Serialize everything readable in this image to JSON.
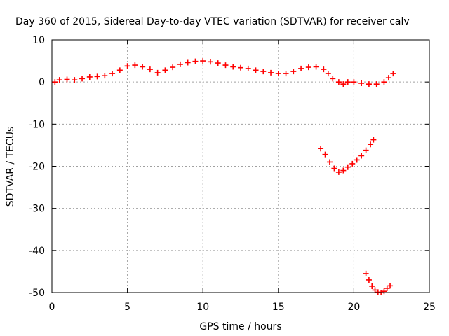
{
  "chart_data": {
    "type": "scatter",
    "title": "Day 360 of 2015, Sidereal Day-to-day VTEC variation (SDTVAR) for receiver calv",
    "xlabel": "GPS time / hours",
    "ylabel": "SDTVAR / TECUs",
    "xlim": [
      0,
      25
    ],
    "ylim": [
      -50,
      10
    ],
    "xticks": [
      0,
      5,
      10,
      15,
      20,
      25
    ],
    "yticks": [
      -50,
      -40,
      -30,
      -20,
      -10,
      0,
      10
    ],
    "grid": true,
    "marker": "plus",
    "color": "#ff0000",
    "series": [
      {
        "values": [
          [
            0.2,
            0.0
          ],
          [
            0.5,
            0.5
          ],
          [
            1.0,
            0.6
          ],
          [
            1.5,
            0.5
          ],
          [
            2.0,
            0.8
          ],
          [
            2.5,
            1.2
          ],
          [
            3.0,
            1.3
          ],
          [
            3.5,
            1.5
          ],
          [
            4.0,
            2.0
          ],
          [
            4.5,
            2.8
          ],
          [
            5.0,
            3.8
          ],
          [
            5.5,
            4.0
          ],
          [
            6.0,
            3.6
          ],
          [
            6.5,
            3.0
          ],
          [
            7.0,
            2.2
          ],
          [
            7.5,
            2.8
          ],
          [
            8.0,
            3.5
          ],
          [
            8.5,
            4.2
          ],
          [
            9.0,
            4.6
          ],
          [
            9.5,
            4.9
          ],
          [
            10.0,
            5.0
          ],
          [
            10.5,
            4.8
          ],
          [
            11.0,
            4.5
          ],
          [
            11.5,
            4.0
          ],
          [
            12.0,
            3.6
          ],
          [
            12.5,
            3.4
          ],
          [
            13.0,
            3.2
          ],
          [
            13.5,
            2.8
          ],
          [
            14.0,
            2.5
          ],
          [
            14.5,
            2.2
          ],
          [
            15.0,
            2.0
          ],
          [
            15.5,
            2.0
          ],
          [
            16.0,
            2.5
          ],
          [
            16.5,
            3.2
          ],
          [
            17.0,
            3.5
          ],
          [
            17.5,
            3.6
          ],
          [
            18.0,
            3.0
          ],
          [
            18.3,
            2.0
          ],
          [
            18.6,
            0.8
          ],
          [
            19.0,
            0.0
          ],
          [
            19.3,
            -0.5
          ],
          [
            19.6,
            0.0
          ],
          [
            20.0,
            0.0
          ],
          [
            20.5,
            -0.3
          ],
          [
            21.0,
            -0.5
          ],
          [
            21.5,
            -0.5
          ],
          [
            22.0,
            0.0
          ],
          [
            22.3,
            1.0
          ],
          [
            22.6,
            2.0
          ]
        ]
      },
      {
        "values": [
          [
            17.8,
            -15.8
          ],
          [
            18.1,
            -17.2
          ],
          [
            18.4,
            -19.0
          ],
          [
            18.7,
            -20.5
          ],
          [
            19.0,
            -21.4
          ],
          [
            19.3,
            -21.0
          ],
          [
            19.6,
            -20.2
          ],
          [
            19.9,
            -19.4
          ],
          [
            20.2,
            -18.5
          ],
          [
            20.5,
            -17.5
          ],
          [
            20.8,
            -16.2
          ],
          [
            21.1,
            -14.8
          ],
          [
            21.3,
            -13.7
          ]
        ]
      },
      {
        "values": [
          [
            20.8,
            -45.5
          ],
          [
            21.0,
            -47.0
          ],
          [
            21.2,
            -48.5
          ],
          [
            21.4,
            -49.4
          ],
          [
            21.6,
            -49.9
          ],
          [
            21.8,
            -50.0
          ],
          [
            22.0,
            -49.7
          ],
          [
            22.2,
            -49.0
          ],
          [
            22.4,
            -48.4
          ]
        ]
      }
    ]
  }
}
